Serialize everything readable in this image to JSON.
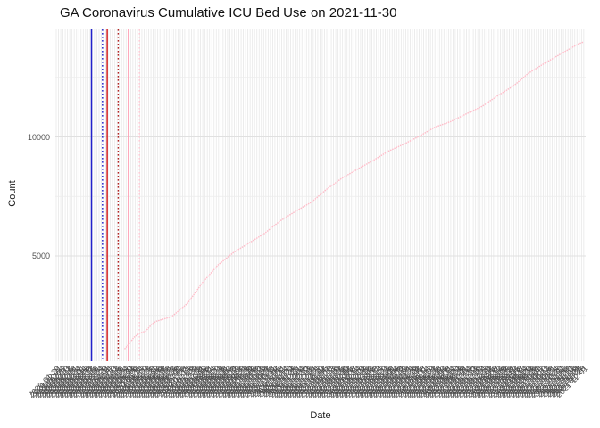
{
  "title": "GA Coronavirus Cumulative ICU Bed Use on 2021-11-30",
  "chart_data": {
    "type": "line",
    "title": "GA Coronavirus Cumulative ICU Bed Use on 2021-11-30",
    "xlabel": "Date",
    "ylabel": "Count",
    "grid": "on",
    "legend": "none",
    "background": "#ffffff",
    "x_axis": {
      "kind": "date",
      "first_tick": "2020-01-29",
      "last_tick": "2021-12-02",
      "tick_step_days": 3,
      "tick_angle_deg": 45,
      "tick_format": "YYYY-MM-DD"
    },
    "y_axis": {
      "ticks": [
        {
          "value": 5000,
          "label": "5000"
        },
        {
          "value": 10000,
          "label": "10000"
        }
      ],
      "minor_ticks": [
        2500,
        7500,
        12500
      ],
      "ylim": [
        350,
        14600
      ]
    },
    "series": [
      {
        "name": "cumulative-icu-bed-use",
        "color": "#FFBCC9",
        "style": "dotted-points",
        "points": [
          {
            "date": "2020-04-25",
            "value": 1090
          },
          {
            "date": "2020-05-01",
            "value": 1315
          },
          {
            "date": "2020-05-07",
            "value": 1580
          },
          {
            "date": "2020-05-15",
            "value": 1765
          },
          {
            "date": "2020-05-22",
            "value": 1840
          },
          {
            "date": "2020-05-30",
            "value": 2140
          },
          {
            "date": "2020-06-04",
            "value": 2250
          },
          {
            "date": "2020-06-24",
            "value": 2450
          },
          {
            "date": "2020-07-14",
            "value": 3000
          },
          {
            "date": "2020-08-02",
            "value": 3870
          },
          {
            "date": "2020-08-22",
            "value": 4620
          },
          {
            "date": "2020-09-11",
            "value": 5150
          },
          {
            "date": "2020-09-30",
            "value": 5530
          },
          {
            "date": "2020-10-20",
            "value": 5940
          },
          {
            "date": "2020-11-09",
            "value": 6470
          },
          {
            "date": "2020-11-29",
            "value": 6880
          },
          {
            "date": "2020-12-19",
            "value": 7260
          },
          {
            "date": "2021-01-08",
            "value": 7820
          },
          {
            "date": "2021-01-27",
            "value": 8270
          },
          {
            "date": "2021-02-16",
            "value": 8650
          },
          {
            "date": "2021-03-08",
            "value": 9020
          },
          {
            "date": "2021-03-27",
            "value": 9400
          },
          {
            "date": "2021-04-16",
            "value": 9700
          },
          {
            "date": "2021-05-06",
            "value": 10040
          },
          {
            "date": "2021-05-25",
            "value": 10410
          },
          {
            "date": "2021-06-14",
            "value": 10640
          },
          {
            "date": "2021-07-05",
            "value": 10980
          },
          {
            "date": "2021-07-24",
            "value": 11280
          },
          {
            "date": "2021-08-13",
            "value": 11730
          },
          {
            "date": "2021-09-02",
            "value": 12140
          },
          {
            "date": "2021-09-21",
            "value": 12670
          },
          {
            "date": "2021-10-11",
            "value": 13080
          },
          {
            "date": "2021-10-31",
            "value": 13460
          },
          {
            "date": "2021-11-24",
            "value": 13910
          },
          {
            "date": "2021-11-30",
            "value": 13980
          }
        ]
      }
    ],
    "vlines": [
      {
        "date": "2020-03-14",
        "color": "#2222CC",
        "style": "solid"
      },
      {
        "date": "2020-03-28",
        "color": "#2222CC",
        "style": "dotted"
      },
      {
        "date": "2020-04-03",
        "color": "#D42020",
        "style": "solid"
      },
      {
        "date": "2020-04-17",
        "color": "#B22222",
        "style": "dotted"
      },
      {
        "date": "2020-04-30",
        "color": "#FF9FB4",
        "style": "solid"
      },
      {
        "date": "2020-05-14",
        "color": "#FFC6D2",
        "style": "dotted"
      }
    ]
  },
  "colors": {
    "background": "#ffffff",
    "gridline_major": "#E0E0E0",
    "gridline_minor": "#ECECEC",
    "gridline_vertical": "#E8E8E8",
    "axis_text": "#4d4d4d",
    "title_text": "#111111"
  }
}
